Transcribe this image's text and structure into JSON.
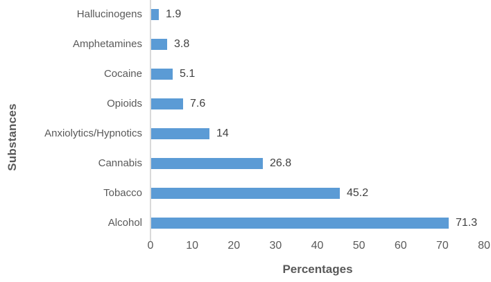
{
  "figure": {
    "background_color": "#ffffff",
    "bar_color": "#5b9bd5",
    "axis_line_color": "#d9d9d9",
    "tick_label_color": "#595959",
    "category_label_color": "#595959",
    "value_label_color": "#404040",
    "axis_title_color": "#595959"
  },
  "chart_data": {
    "type": "bar",
    "orientation": "horizontal",
    "title": "",
    "xlabel": "Percentages",
    "ylabel": "Substances",
    "categories": [
      "Hallucinogens",
      "Amphetamines",
      "Cocaine",
      "Opioids",
      "Anxiolytics/Hypnotics",
      "Cannabis",
      "Tobacco",
      "Alcohol"
    ],
    "values": [
      1.9,
      3.8,
      5.1,
      7.6,
      14,
      26.8,
      45.2,
      71.3
    ],
    "value_labels": [
      "1.9",
      "3.8",
      "5.1",
      "7.6",
      "14",
      "26.8",
      "45.2",
      "71.3"
    ],
    "xlim": [
      0,
      80
    ],
    "xticks": [
      "0",
      "10",
      "20",
      "30",
      "40",
      "50",
      "60",
      "70",
      "80"
    ],
    "grid": false,
    "legend": null
  }
}
